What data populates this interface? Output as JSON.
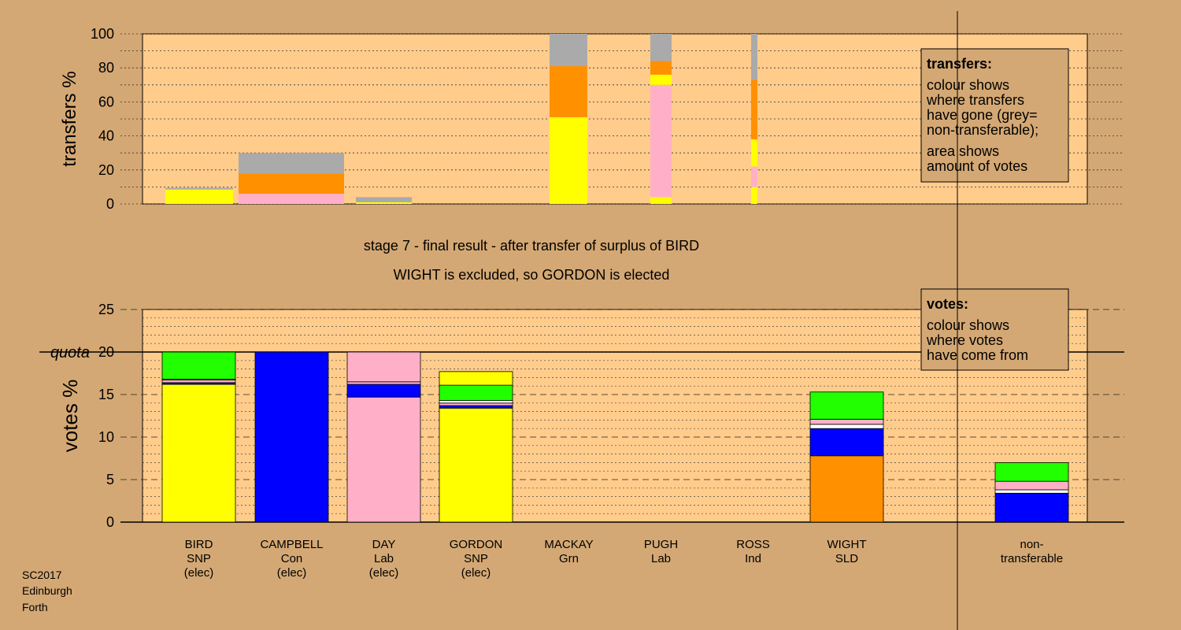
{
  "colors": {
    "background": "#d4a874",
    "plot_bg": "#ffcc8c",
    "SNP": "#ffff00",
    "Con": "#0000ff",
    "Lab": "#ffb0c8",
    "Grn": "#22ff00",
    "SLD": "#ff9000",
    "Ind": "#ffffff",
    "nontransferable": "#aaaaaa"
  },
  "caption": {
    "line1": "stage 7 - final result - after transfer of surplus of BIRD",
    "line2": "WIGHT is excluded, so GORDON is elected"
  },
  "footer": {
    "line1": "SC2017",
    "line2": "Edinburgh",
    "line3": "Forth"
  },
  "legend_transfers": {
    "title": "transfers:",
    "lines": [
      "colour shows",
      "where transfers",
      "have gone (grey=",
      "non-transferable);",
      "area shows",
      "amount of votes"
    ]
  },
  "legend_votes": {
    "title": "votes:",
    "lines": [
      "colour shows",
      "where votes",
      "have come from"
    ]
  },
  "chart_data": [
    {
      "type": "bar",
      "ylabel": "transfers %",
      "ylim": [
        0,
        100
      ],
      "yticks": [
        0,
        20,
        40,
        60,
        80,
        100
      ],
      "bars": [
        {
          "candidate": "BIRD",
          "segments": [
            {
              "party": "SNP",
              "value": 8.5
            },
            {
              "party": "nontransferable",
              "value": 1
            }
          ]
        },
        {
          "candidate": "CAMPBELL",
          "segments": [
            {
              "party": "Lab",
              "value": 6
            },
            {
              "party": "SLD",
              "value": 12
            },
            {
              "party": "nontransferable",
              "value": 12
            }
          ]
        },
        {
          "candidate": "DAY",
          "segments": [
            {
              "party": "SNP",
              "value": 1
            },
            {
              "party": "nontransferable",
              "value": 3
            }
          ]
        },
        {
          "candidate": "MACKAY",
          "segments": [
            {
              "party": "SNP",
              "value": 51
            },
            {
              "party": "SLD",
              "value": 30
            },
            {
              "party": "nontransferable",
              "value": 19
            }
          ]
        },
        {
          "candidate": "PUGH",
          "segments": [
            {
              "party": "SNP",
              "value": 4
            },
            {
              "party": "Lab",
              "value": 66
            },
            {
              "party": "SNP",
              "value": 6
            },
            {
              "party": "SLD",
              "value": 8
            },
            {
              "party": "nontransferable",
              "value": 16
            }
          ]
        },
        {
          "candidate": "ROSS",
          "segments": [
            {
              "party": "SNP",
              "value": 10
            },
            {
              "party": "Lab",
              "value": 12
            },
            {
              "party": "SNP",
              "value": 16
            },
            {
              "party": "SLD",
              "value": 35
            },
            {
              "party": "nontransferable",
              "value": 27
            }
          ]
        }
      ]
    },
    {
      "type": "bar",
      "ylabel": "votes %",
      "ylim": [
        0,
        25
      ],
      "yticks": [
        0,
        5,
        10,
        15,
        20,
        25
      ],
      "quota": {
        "label": "quota",
        "value": 20
      },
      "bars": [
        {
          "name": "BIRD",
          "party": "SNP",
          "status": "(elec)",
          "segments": [
            {
              "party": "SNP",
              "value": 16.2
            },
            {
              "party": "Con",
              "value": 0.2
            },
            {
              "party": "Lab",
              "value": 0.3
            },
            {
              "party": "SLD",
              "value": 0.1
            },
            {
              "party": "Grn",
              "value": 3.2
            }
          ]
        },
        {
          "name": "CAMPBELL",
          "party": "Con",
          "status": "(elec)",
          "segments": [
            {
              "party": "Con",
              "value": 20
            }
          ]
        },
        {
          "name": "DAY",
          "party": "Lab",
          "status": "(elec)",
          "segments": [
            {
              "party": "Lab",
              "value": 14.7
            },
            {
              "party": "Con",
              "value": 1.5
            },
            {
              "party": "Lab",
              "value": 0.3
            },
            {
              "party": "Lab",
              "value": 3.5
            }
          ]
        },
        {
          "name": "GORDON",
          "party": "SNP",
          "status": "(elec)",
          "segments": [
            {
              "party": "SNP",
              "value": 13.4
            },
            {
              "party": "Con",
              "value": 0.3
            },
            {
              "party": "Lab",
              "value": 0.3
            },
            {
              "party": "Ind",
              "value": 0.3
            },
            {
              "party": "Grn",
              "value": 1.8
            },
            {
              "party": "SNP",
              "value": 1.6
            }
          ]
        },
        {
          "name": "MACKAY",
          "party": "Grn",
          "status": "",
          "segments": []
        },
        {
          "name": "PUGH",
          "party": "Lab",
          "status": "",
          "segments": []
        },
        {
          "name": "ROSS",
          "party": "Ind",
          "status": "",
          "segments": []
        },
        {
          "name": "WIGHT",
          "party": "SLD",
          "status": "",
          "segments": [
            {
              "party": "SLD",
              "value": 7.8
            },
            {
              "party": "Con",
              "value": 3.2
            },
            {
              "party": "Ind",
              "value": 0.5
            },
            {
              "party": "Lab",
              "value": 0.6
            },
            {
              "party": "Grn",
              "value": 3.2
            }
          ]
        },
        {
          "name": "non-\ntransferable",
          "party": "",
          "status": "",
          "segments": [
            {
              "party": "Con",
              "value": 3.4
            },
            {
              "party": "Ind",
              "value": 0.4
            },
            {
              "party": "Lab",
              "value": 1.0
            },
            {
              "party": "Grn",
              "value": 2.2
            }
          ]
        }
      ]
    }
  ]
}
